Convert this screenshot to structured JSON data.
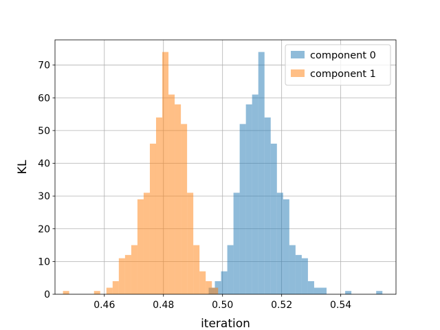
{
  "chart_data": {
    "type": "bar",
    "subtype": "overlapping-histogram",
    "title": "",
    "xlabel": "iteration",
    "ylabel": "KL",
    "xlim": [
      0.4433,
      0.5587
    ],
    "ylim": [
      0,
      77.7
    ],
    "xticks": [
      0.46,
      0.48,
      0.5,
      0.52,
      0.54
    ],
    "xtick_labels": [
      "0.46",
      "0.48",
      "0.50",
      "0.52",
      "0.54"
    ],
    "yticks": [
      0,
      10,
      20,
      30,
      40,
      50,
      60,
      70
    ],
    "ytick_labels": [
      "0",
      "10",
      "20",
      "30",
      "40",
      "50",
      "60",
      "70"
    ],
    "grid": true,
    "legend_position": "top-right",
    "bin_width": 0.0021,
    "series": [
      {
        "name": "component 0",
        "color": "#1f77b4",
        "alpha": 0.5,
        "bins": [
          {
            "x0": 0.4953,
            "count": 2
          },
          {
            "x0": 0.4974,
            "count": 4
          },
          {
            "x0": 0.4995,
            "count": 7
          },
          {
            "x0": 0.5016,
            "count": 15
          },
          {
            "x0": 0.5037,
            "count": 31
          },
          {
            "x0": 0.5058,
            "count": 52
          },
          {
            "x0": 0.5079,
            "count": 58
          },
          {
            "x0": 0.51,
            "count": 61
          },
          {
            "x0": 0.5121,
            "count": 74
          },
          {
            "x0": 0.5142,
            "count": 54
          },
          {
            "x0": 0.5163,
            "count": 46
          },
          {
            "x0": 0.5184,
            "count": 31
          },
          {
            "x0": 0.5205,
            "count": 29
          },
          {
            "x0": 0.5226,
            "count": 15
          },
          {
            "x0": 0.5247,
            "count": 12
          },
          {
            "x0": 0.5268,
            "count": 11
          },
          {
            "x0": 0.5289,
            "count": 4
          },
          {
            "x0": 0.531,
            "count": 2
          },
          {
            "x0": 0.5331,
            "count": 2
          },
          {
            "x0": 0.5415,
            "count": 1
          },
          {
            "x0": 0.552,
            "count": 1
          }
        ]
      },
      {
        "name": "component 1",
        "color": "#ff7f0e",
        "alpha": 0.5,
        "bins": [
          {
            "x0": 0.446,
            "count": 1
          },
          {
            "x0": 0.4565,
            "count": 1
          },
          {
            "x0": 0.4607,
            "count": 2
          },
          {
            "x0": 0.4628,
            "count": 4
          },
          {
            "x0": 0.4649,
            "count": 11
          },
          {
            "x0": 0.467,
            "count": 12
          },
          {
            "x0": 0.4691,
            "count": 15
          },
          {
            "x0": 0.4712,
            "count": 29
          },
          {
            "x0": 0.4733,
            "count": 31
          },
          {
            "x0": 0.4754,
            "count": 46
          },
          {
            "x0": 0.4775,
            "count": 54
          },
          {
            "x0": 0.4796,
            "count": 74
          },
          {
            "x0": 0.4817,
            "count": 61
          },
          {
            "x0": 0.4838,
            "count": 58
          },
          {
            "x0": 0.4859,
            "count": 52
          },
          {
            "x0": 0.488,
            "count": 31
          },
          {
            "x0": 0.4901,
            "count": 15
          },
          {
            "x0": 0.4922,
            "count": 7
          },
          {
            "x0": 0.4943,
            "count": 4
          },
          {
            "x0": 0.4964,
            "count": 2
          }
        ]
      }
    ]
  }
}
